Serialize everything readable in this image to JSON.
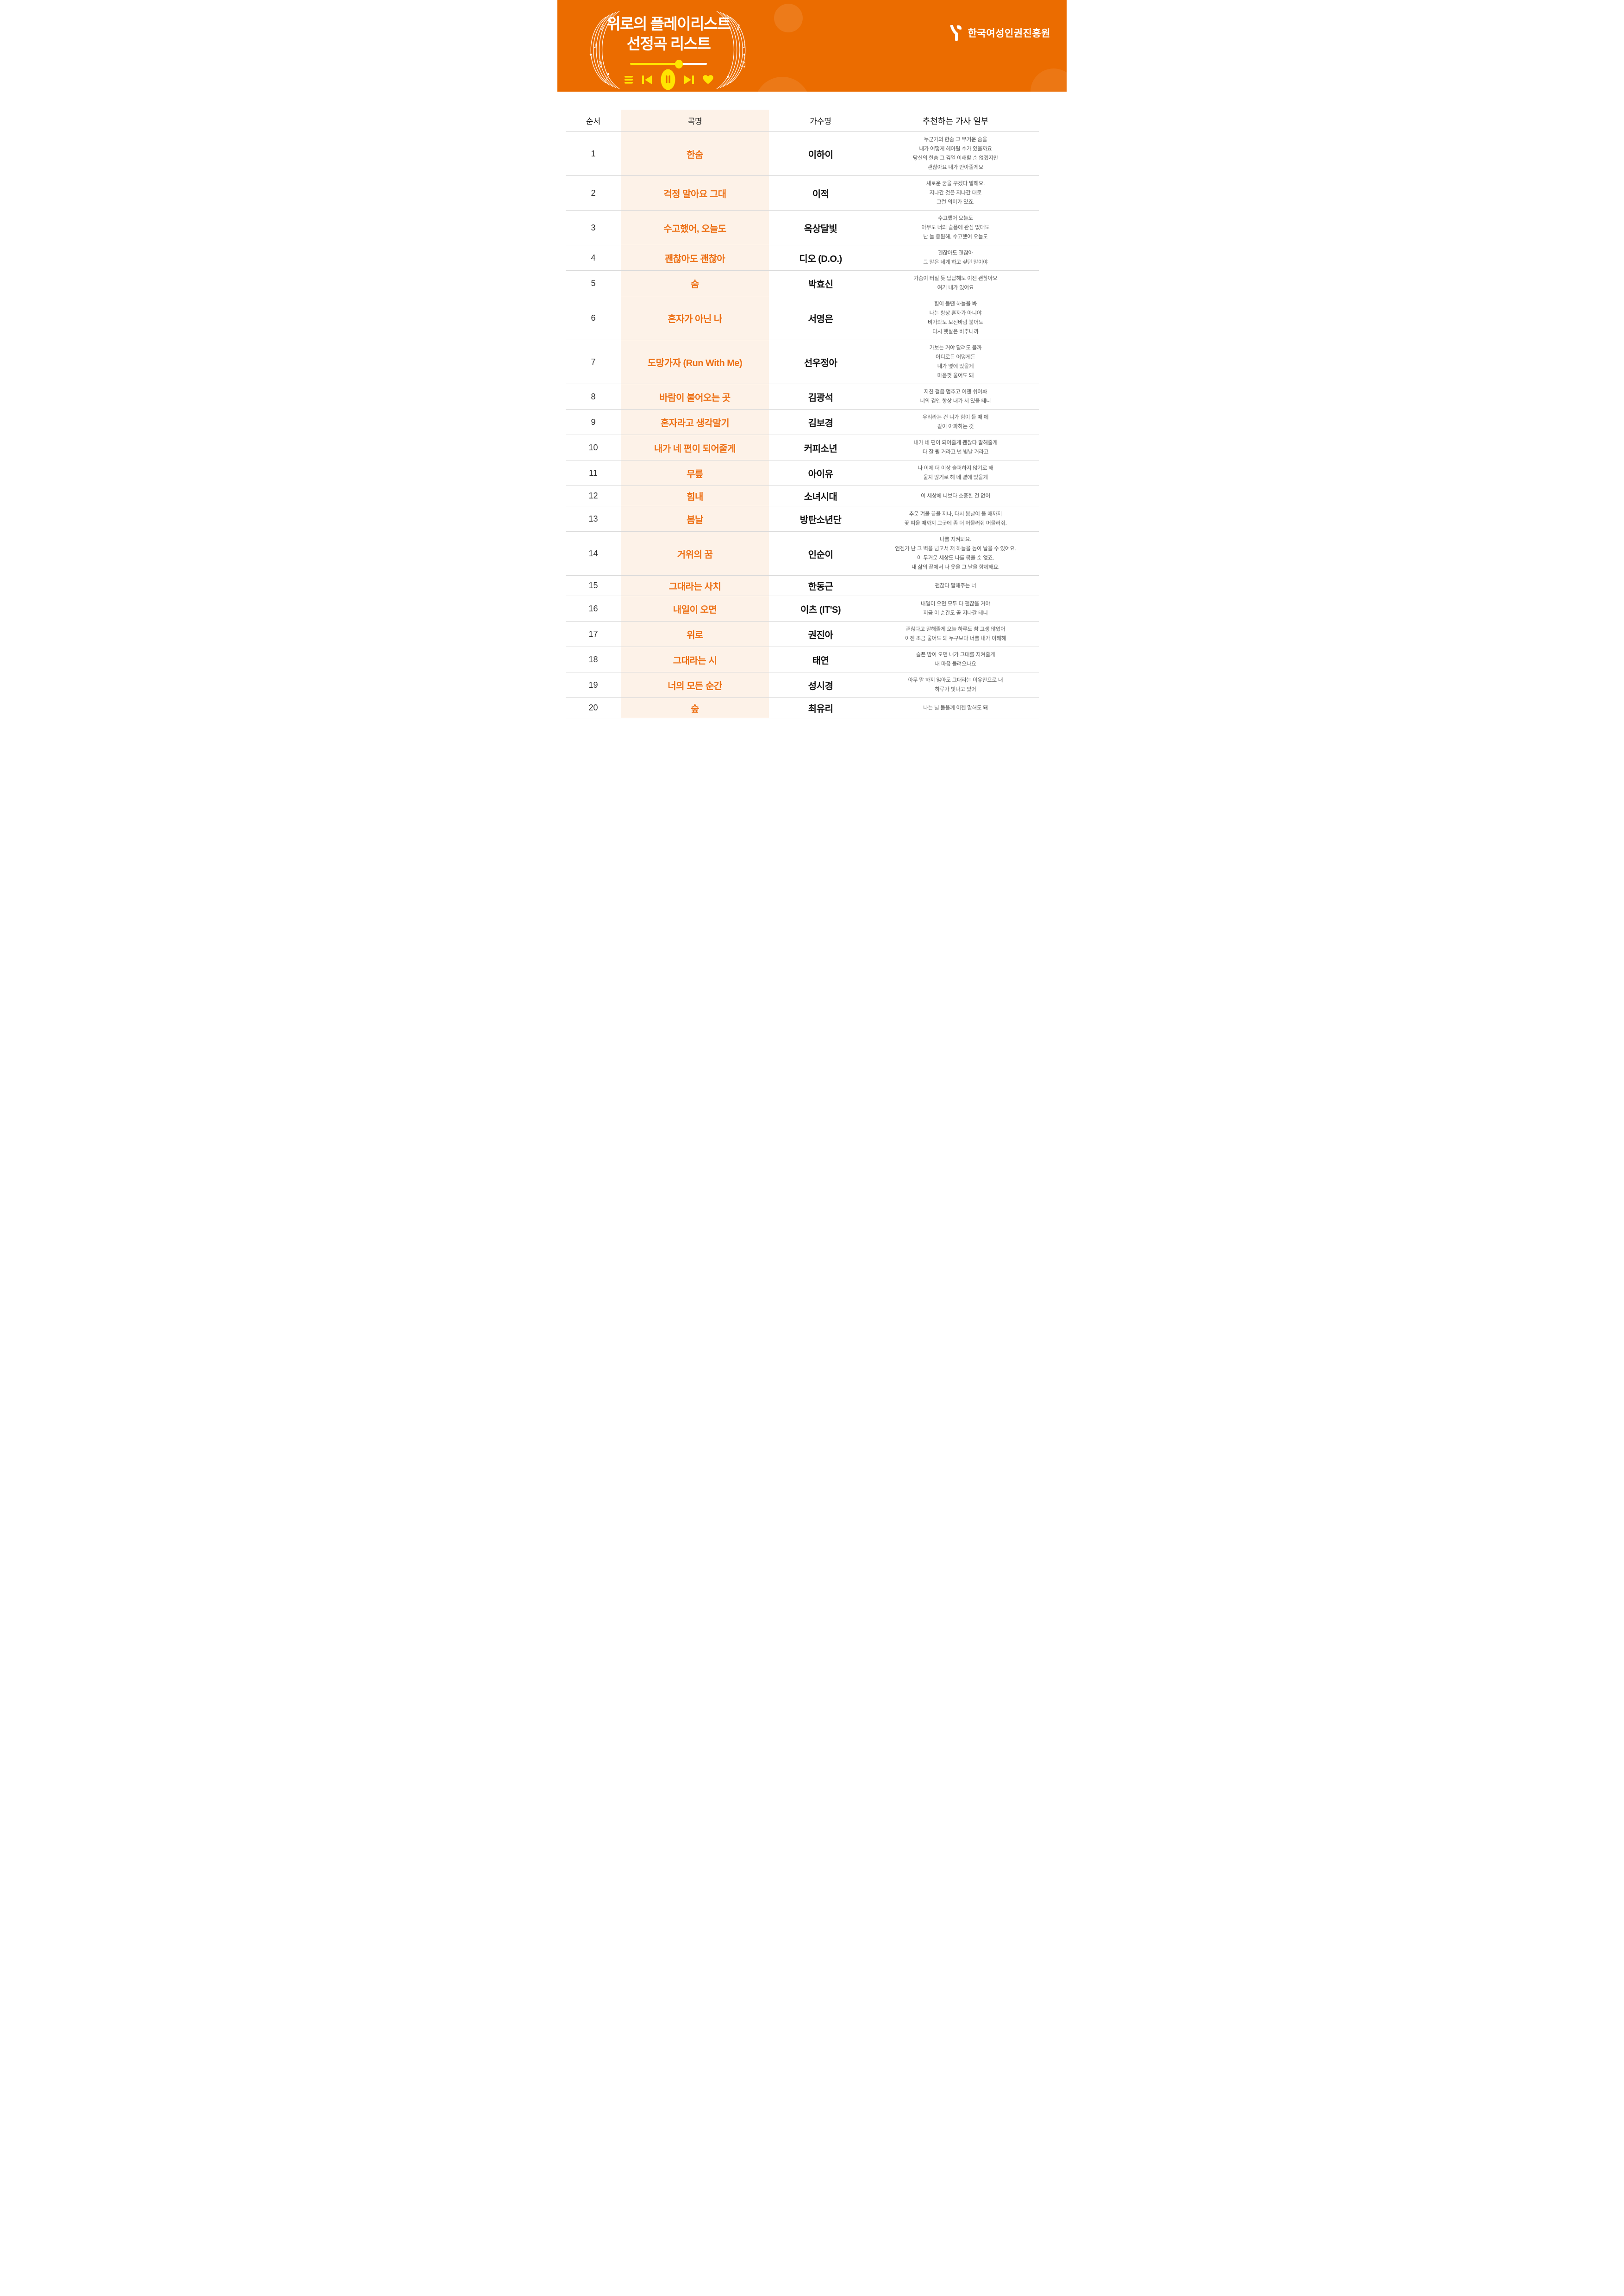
{
  "page_title": "위로의 플레이리스트 선정곡 리스트",
  "header": {
    "title_line1": "위로의 플레이리스트",
    "title_line2": "선정곡 리스트",
    "logo_text": "한국여성인권진흥원",
    "player": {
      "progress_percent": 63,
      "icons": [
        {
          "name": "menu-icon",
          "glyph": "☰"
        },
        {
          "name": "previous-icon",
          "glyph": "⏮"
        },
        {
          "name": "pause-icon",
          "glyph": "⏸"
        },
        {
          "name": "next-icon",
          "glyph": "⏭"
        },
        {
          "name": "heart-icon",
          "glyph": "♥"
        }
      ]
    }
  },
  "colors": {
    "banner_orange": "#EB6C00",
    "accent_yellow": "#FFE400",
    "song_orange": "#ED7117",
    "column_peach": "#FDF2E8",
    "divider_gray": "#DADADA",
    "lyrics_gray": "#5A5A5A",
    "ink": "#161616"
  },
  "table": {
    "columns": [
      "순서",
      "곡명",
      "가수명",
      "추천하는 가사 일부"
    ],
    "rows": [
      {
        "no": "1",
        "song": "한숨",
        "artist": "이하이",
        "lyrics": "누군가의 한숨 그 무거운 숨을\n내가 어떻게 헤아릴 수가 있을까요\n당신의 한숨 그 깊일 이해할 순 없겠지만\n괜찮아요 내가 안아줄게요"
      },
      {
        "no": "2",
        "song": "걱정 말아요 그대",
        "artist": "이적",
        "lyrics": "새로운 꿈을 꾸겠다 말해요.\n지나간 것은 지나간 대로\n그런 의미가 있죠."
      },
      {
        "no": "3",
        "song": "수고했어, 오늘도",
        "artist": "옥상달빛",
        "lyrics": "수고했어 오늘도\n아무도 너의 슬픔에 관심 없대도\n난 늘 응원해, 수고했어 오늘도"
      },
      {
        "no": "4",
        "song": "괜찮아도 괜찮아",
        "artist": "디오 (D.O.)",
        "lyrics": "괜찮아도 괜찮아\n그 말은 네게 하고 싶던 말이야"
      },
      {
        "no": "5",
        "song": "숨",
        "artist": "박효신",
        "lyrics": "가슴이 터질 듯 답답해도 이젠 괜찮아요\n여기 내가 있어요"
      },
      {
        "no": "6",
        "song": "혼자가 아닌 나",
        "artist": "서영은",
        "lyrics": "힘이 들땐 하늘을 봐\n나는 항상 혼자가 아니야\n비가와도 모진바람 불어도\n다시 햇살은 비추니까"
      },
      {
        "no": "7",
        "song": "도망가자 (Run With Me)",
        "artist": "선우정아",
        "lyrics": "가보는 거야 달려도 볼까\n어디로든 어떻게든\n내가 옆에 있을게\n마음껏 울어도 돼"
      },
      {
        "no": "8",
        "song": "바람이 불어오는 곳",
        "artist": "김광석",
        "lyrics": "지친 걸음 멈추고 이젠 쉬어봐\n너의 곁엔 항상 내가 서 있을 테니"
      },
      {
        "no": "9",
        "song": "혼자라고 생각말기",
        "artist": "김보경",
        "lyrics": "우리라는 건 니가 힘이 들 때 에\n같이 아파하는 것"
      },
      {
        "no": "10",
        "song": "내가 네 편이 되어줄게",
        "artist": "커피소년",
        "lyrics": "내가 네 편이 되어줄게 괜찮다 말해줄게\n다 잘 될 거라고 넌 빛날 거라고"
      },
      {
        "no": "11",
        "song": "무릎",
        "artist": "아이유",
        "lyrics": "나 이제 더 이상 슬퍼하지 않기로 해\n울지 않기로 해 네 곁에 있을게"
      },
      {
        "no": "12",
        "song": "힘내",
        "artist": "소녀시대",
        "lyrics": "이 세상에 너보다 소중한 건 없어"
      },
      {
        "no": "13",
        "song": "봄날",
        "artist": "방탄소년단",
        "lyrics": "추운 겨울 끝을 지나, 다시 봄날이 올 때까지\n꽃 피울 때까지 그곳에 좀 더 머물러줘 머물러줘."
      },
      {
        "no": "14",
        "song": "거위의 꿈",
        "artist": "인순이",
        "lyrics": "나를 지켜봐요.\n언젠가 난 그 벽을 넘고서 저 하늘을 높이 날을 수 있어요.\n이 무거운 세상도 나를 묶을 순 없죠.\n내 삶의 끝에서 나 웃을 그 날을 함께해요."
      },
      {
        "no": "15",
        "song": "그대라는 사치",
        "artist": "한동근",
        "lyrics": "괜찮다 말해주는 너"
      },
      {
        "no": "16",
        "song": "내일이 오면",
        "artist": "이츠 (IT'S)",
        "lyrics": "내일이 오면 모두 다 괜찮을 거야\n지금 이 순간도 곧 지나갈 테니"
      },
      {
        "no": "17",
        "song": "위로",
        "artist": "권진아",
        "lyrics": "괜찮다고 말해줄게 오늘 하루도 참 고생 많았어\n이젠 조금 울어도 돼 누구보다 너를 내가 이해해"
      },
      {
        "no": "18",
        "song": "그대라는 시",
        "artist": "태연",
        "lyrics": "슬픈 밤이 오면 내가 그대를 지켜줄게\n내 마음 들려오나요"
      },
      {
        "no": "19",
        "song": "너의 모든 순간",
        "artist": "성시경",
        "lyrics": "아무 말 하지 않아도 그대라는 이유만으로 내\n하루가 빛나고 있어"
      },
      {
        "no": "20",
        "song": "숲",
        "artist": "최유리",
        "lyrics": "나는 널 들을께 이젠 말해도 돼"
      }
    ]
  }
}
